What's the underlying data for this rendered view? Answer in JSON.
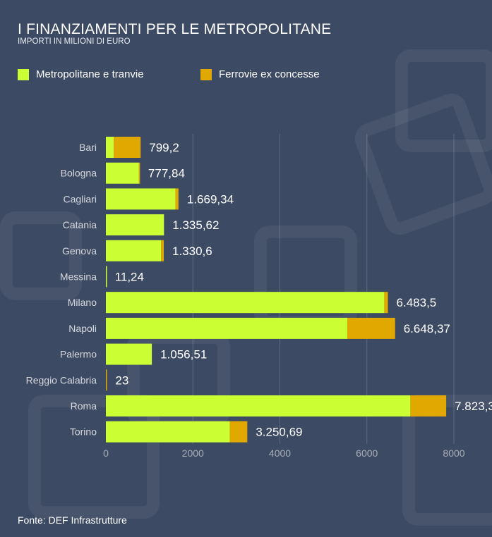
{
  "header": {
    "title": "I FINANZIAMENTI PER LE METROPOLITANE",
    "subtitle": "IMPORTI IN MILIONI DI EURO"
  },
  "legend": {
    "items": [
      {
        "label": "Metropolitane e tranvie",
        "color": "#ccff33"
      },
      {
        "label": "Ferrovie ex concesse",
        "color": "#e0a800"
      }
    ]
  },
  "source": "Fonte: DEF Infrastrutture",
  "chart_data": {
    "type": "bar",
    "orientation": "horizontal",
    "stacked": true,
    "categories": [
      "Bari",
      "Bologna",
      "Cagliari",
      "Catania",
      "Genova",
      "Messina",
      "Milano",
      "Napoli",
      "Palermo",
      "Reggio Calabria",
      "Roma",
      "Torino"
    ],
    "series": [
      {
        "name": "Metropolitane e tranvie",
        "color": "#ccff33",
        "values": [
          180,
          760,
          1600,
          1335.62,
          1270,
          11.24,
          6400,
          5550,
          1056.51,
          0,
          7000,
          2850
        ]
      },
      {
        "name": "Ferrovie ex concesse",
        "color": "#e0a800",
        "values": [
          619.2,
          17.84,
          69.34,
          0,
          60.6,
          0,
          83.5,
          1098.37,
          0,
          23,
          823.3,
          400.69
        ]
      }
    ],
    "totals_labels": [
      "799,2",
      "777,84",
      "1.669,34",
      "1.335,62",
      "1.330,6",
      "11,24",
      "6.483,5",
      "6.648,37",
      "1.056,51",
      "23",
      "7.823,3",
      "3.250,69"
    ],
    "xticks": [
      0,
      2000,
      4000,
      6000,
      8000
    ],
    "xtick_labels": [
      "0",
      "2000",
      "4000",
      "6000",
      "8000"
    ],
    "xlim": [
      0,
      8300
    ],
    "grid": true,
    "legend_position": "top-left"
  }
}
